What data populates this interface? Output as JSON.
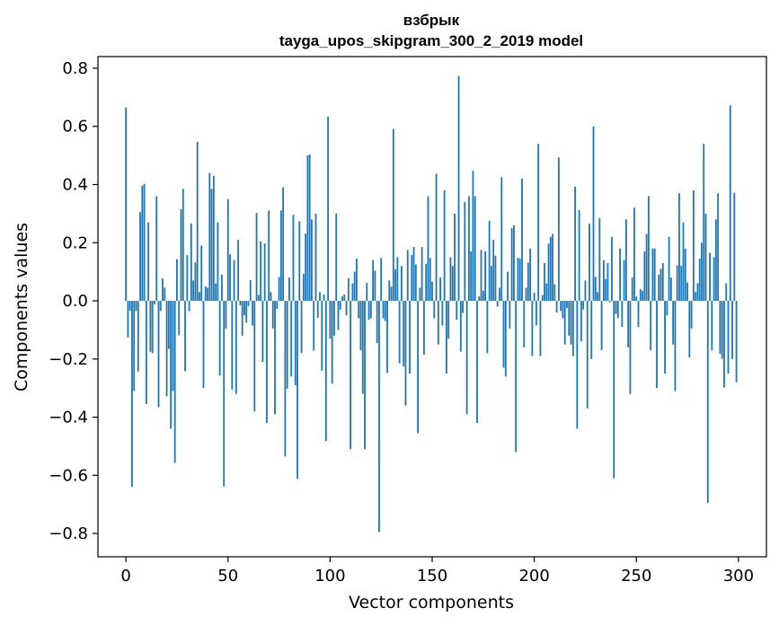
{
  "chart_data": {
    "type": "bar",
    "title": "взбрык",
    "subtitle": "tayga_upos_skipgram_300_2_2019 model",
    "xlabel": "Vector components",
    "ylabel": "Components values",
    "xlim": [
      -13.7,
      313.7
    ],
    "ylim": [
      -0.88,
      0.84
    ],
    "xticks": [
      0,
      50,
      100,
      150,
      200,
      250,
      300
    ],
    "yticks": [
      -0.8,
      -0.6,
      -0.4,
      -0.2,
      0.0,
      0.2,
      0.4,
      0.6,
      0.8
    ],
    "ytick_labels": [
      "−0.8",
      "−0.6",
      "−0.4",
      "−0.2",
      "0.0",
      "0.2",
      "0.4",
      "0.6",
      "0.8"
    ],
    "bar_color": "#1f77b4",
    "grid": false,
    "x_start": 0,
    "values": [
      0.665,
      -0.126,
      -0.034,
      -0.64,
      -0.31,
      -0.035,
      -0.243,
      0.305,
      0.396,
      0.402,
      -0.355,
      0.27,
      -0.175,
      -0.18,
      -0.012,
      0.36,
      -0.366,
      -0.035,
      0.077,
      0.045,
      -0.328,
      -0.165,
      -0.44,
      -0.31,
      -0.557,
      0.143,
      -0.118,
      0.315,
      0.385,
      -0.242,
      0.157,
      -0.036,
      0.266,
      0.07,
      0.132,
      0.547,
      0.03,
      0.19,
      -0.3,
      0.05,
      0.045,
      0.44,
      0.385,
      0.43,
      0.06,
      0.27,
      -0.257,
      0.09,
      -0.638,
      -0.095,
      0.35,
      0.16,
      -0.305,
      0.14,
      -0.32,
      0.21,
      -0.015,
      -0.12,
      -0.05,
      -0.075,
      -0.018,
      0.071,
      -0.085,
      -0.38,
      0.302,
      0.02,
      0.205,
      -0.21,
      0.197,
      -0.42,
      0.31,
      0.03,
      -0.095,
      -0.39,
      -0.028,
      0.082,
      0.311,
      0.39,
      -0.535,
      -0.302,
      0.08,
      -0.26,
      0.296,
      -0.29,
      -0.612,
      0.273,
      -0.18,
      0.093,
      0.231,
      0.5,
      0.503,
      0.28,
      -0.171,
      0.3,
      -0.058,
      0.03,
      -0.24,
      0.022,
      -0.482,
      0.633,
      -0.13,
      -0.285,
      -0.12,
      0.3,
      -0.1,
      -0.03,
      0.015,
      0.022,
      -0.05,
      0.078,
      -0.51,
      0.06,
      0.1,
      0.145,
      -0.06,
      -0.17,
      -0.32,
      -0.51,
      0.062,
      -0.065,
      -0.06,
      0.14,
      0.104,
      -0.145,
      -0.795,
      0.147,
      -0.06,
      -0.069,
      -0.248,
      0.07,
      0.049,
      0.591,
      0.108,
      0.15,
      -0.215,
      0.12,
      -0.225,
      -0.36,
      0.175,
      -0.25,
      0.158,
      0.185,
      0.125,
      -0.455,
      0.045,
      0.185,
      -0.185,
      0.127,
      0.36,
      0.147,
      0.066,
      -0.06,
      0.437,
      -0.15,
      0.08,
      -0.085,
      0.38,
      -0.25,
      -0.13,
      0.15,
      0.12,
      0.3,
      -0.065,
      0.773,
      -0.175,
      -0.042,
      0.34,
      -0.39,
      0.36,
      0.17,
      0.447,
      0.36,
      -0.42,
      0.015,
      0.175,
      0.035,
      0.17,
      -0.18,
      0.275,
      0.12,
      0.21,
      0.155,
      -0.02,
      0.045,
      0.425,
      -0.23,
      -0.26,
      0.1,
      -0.095,
      0.25,
      0.26,
      -0.52,
      0.148,
      0.145,
      0.42,
      -0.16,
      0.045,
      0.132,
      0.18,
      -0.19,
      0.028,
      -0.085,
      0.54,
      -0.19,
      0.02,
      0.13,
      0.06,
      0.197,
      0.22,
      0.23,
      0.057,
      -0.04,
      0.493,
      -0.035,
      -0.06,
      -0.15,
      -0.025,
      -0.12,
      -0.15,
      -0.19,
      0.392,
      -0.44,
      0.312,
      -0.14,
      -0.03,
      0.07,
      -0.37,
      0.265,
      -0.2,
      0.6,
      0.082,
      0.03,
      0.285,
      -0.17,
      0.14,
      0.075,
      0.13,
      -0.005,
      0.22,
      -0.61,
      -0.045,
      -0.06,
      0.18,
      -0.09,
      0.14,
      0.28,
      -0.16,
      -0.32,
      0.08,
      0.32,
      0.015,
      -0.09,
      0.041,
      0.035,
      0.17,
      0.23,
      0.36,
      -0.17,
      0.18,
      0.18,
      -0.3,
      0.09,
      0.11,
      0.13,
      -0.25,
      -0.05,
      0.22,
      0.08,
      -0.15,
      -0.31,
      0.122,
      0.37,
      0.12,
      0.27,
      0.18,
      0.063,
      -0.195,
      -0.095,
      0.38,
      0.03,
      0.06,
      0.145,
      0.2,
      0.54,
      0.3,
      -0.695,
      0.165,
      -0.17,
      0.15,
      0.28,
      0.37,
      -0.182,
      -0.2,
      -0.298,
      0.06,
      -0.25,
      0.672,
      -0.2,
      0.372,
      -0.28
    ]
  }
}
